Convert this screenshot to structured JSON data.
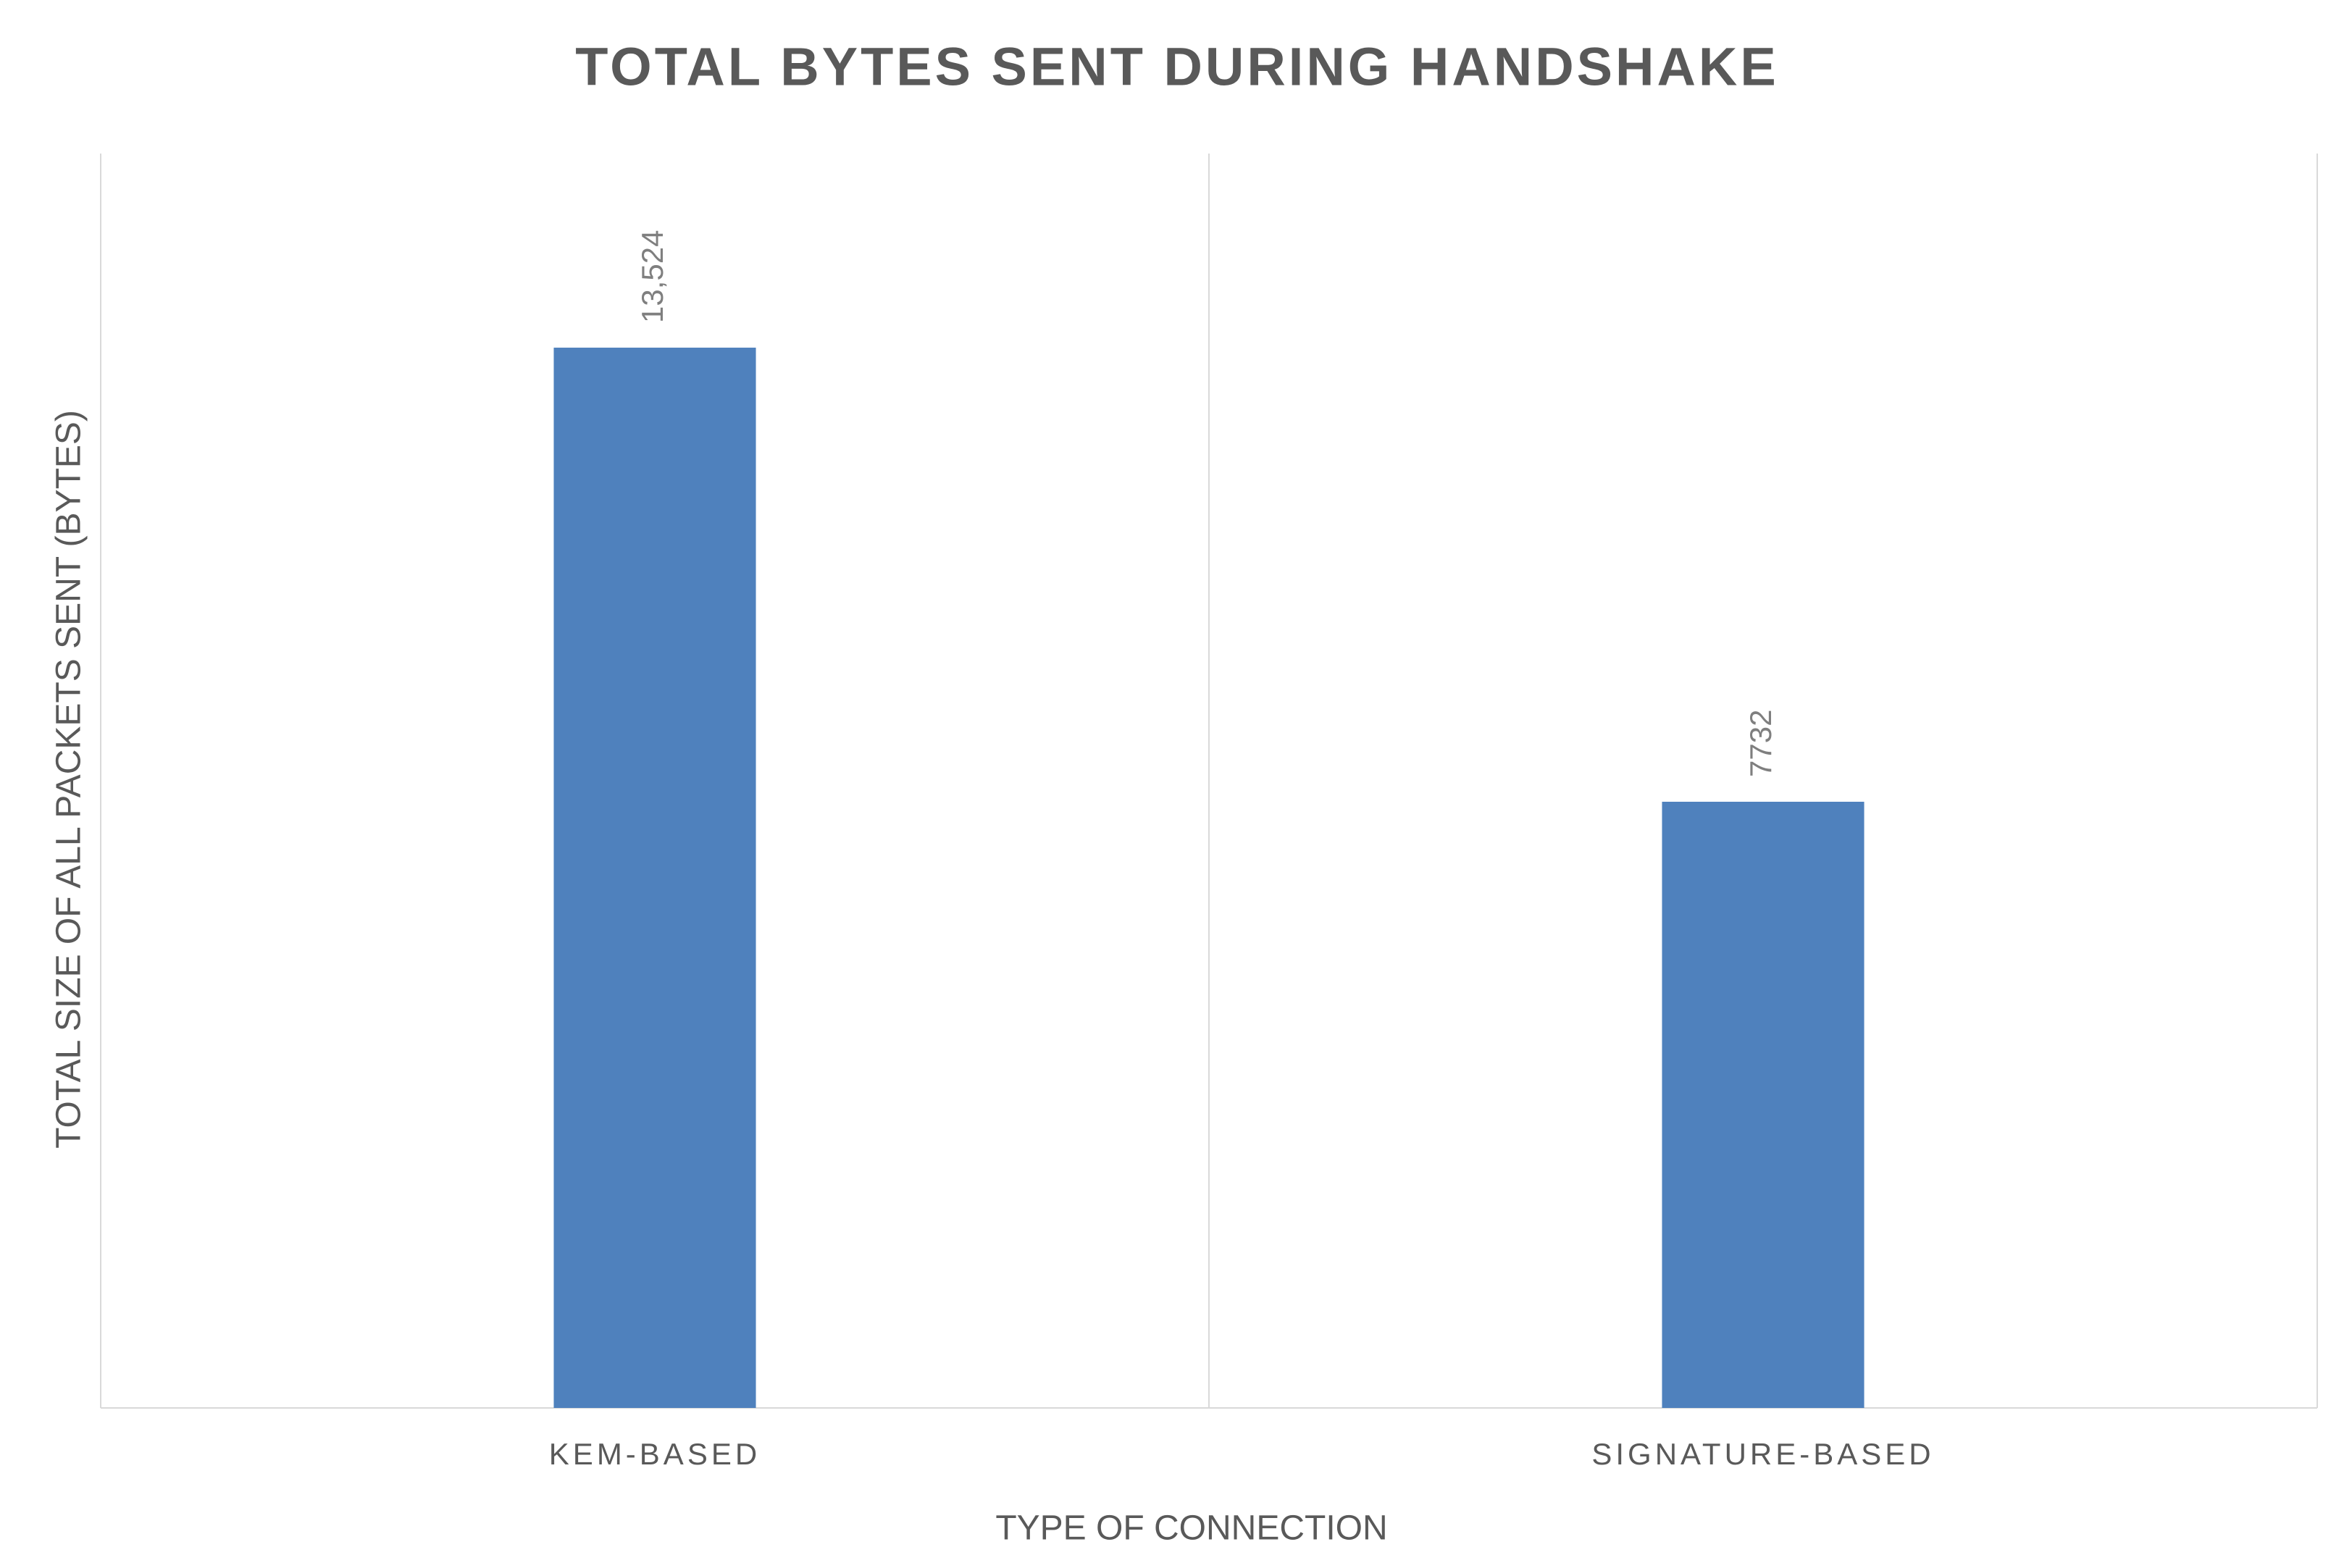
{
  "chart_data": {
    "type": "bar",
    "title": "TOTAL BYTES SENT DURING HANDSHAKE",
    "x_label": "TYPE OF CONNECTION",
    "y_label": "TOTAL SIZE OF ALL PACKETS SENT (BYTES)",
    "categories": [
      "KEM-BASED",
      "SIGNATURE-BASED"
    ],
    "values": [
      13524,
      7732
    ],
    "value_labels": [
      "13,524",
      "7732"
    ],
    "color": "#4f81bd",
    "ylim": [
      0,
      16000
    ]
  }
}
